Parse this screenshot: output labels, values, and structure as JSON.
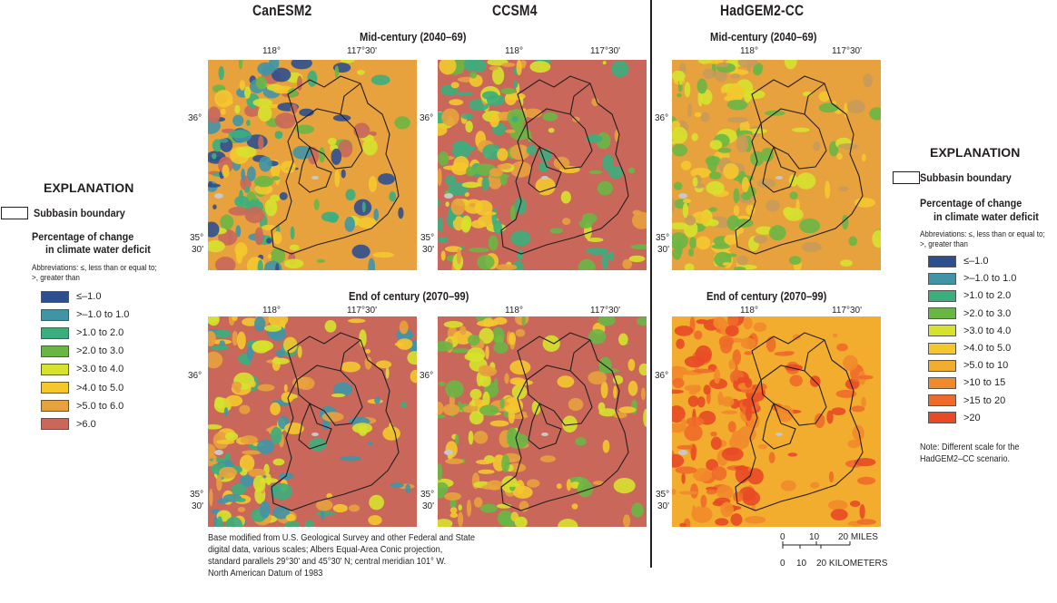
{
  "headers": {
    "canesm2": "CanESM2",
    "ccsm4": "CCSM4",
    "hadgem": "HadGEM2-CC"
  },
  "periods": {
    "mid": "Mid-century  (2040–69)",
    "end": "End of century (2070–99)"
  },
  "ticks": {
    "lon_left": "118°",
    "lon_right": "117°30'",
    "lat_top": "36°",
    "lat_bottom_deg": "35°",
    "lat_bottom_min": "30'"
  },
  "legend_left": {
    "title": "EXPLANATION",
    "boundary_label": "Subbasin boundary",
    "subtitle_line1": "Percentage of change",
    "subtitle_line2": "in climate water deficit",
    "abbr_line1": "Abbreviations: ≤, less than or equal to;",
    "abbr_line2": ">, greater than",
    "items": [
      {
        "label": "≤–1.0",
        "color": "#2e4f8f"
      },
      {
        "label": ">–1.0 to 1.0",
        "color": "#3f95a6"
      },
      {
        "label": ">1.0 to 2.0",
        "color": "#3cae7d"
      },
      {
        "label": ">2.0 to 3.0",
        "color": "#6ab645"
      },
      {
        "label": ">3.0 to 4.0",
        "color": "#d6e22c"
      },
      {
        "label": ">4.0 to 5.0",
        "color": "#f4c82d"
      },
      {
        "label": ">5.0 to 6.0",
        "color": "#e8a23d"
      },
      {
        "label": ">6.0",
        "color": "#c9685a"
      }
    ]
  },
  "legend_right": {
    "title": "EXPLANATION",
    "boundary_label": "Subbasin boundary",
    "subtitle_line1": "Percentage of change",
    "subtitle_line2": "in climate water deficit",
    "abbr_line1": "Abbreviations: ≤, less than or equal to;",
    "abbr_line2": ">, greater than",
    "items": [
      {
        "label": "≤–1.0",
        "color": "#2e4f8f"
      },
      {
        "label": ">–1.0 to 1.0",
        "color": "#3f95a6"
      },
      {
        "label": ">1.0 to 2.0",
        "color": "#3cae7d"
      },
      {
        "label": ">2.0 to 3.0",
        "color": "#6ab645"
      },
      {
        "label": ">3.0 to 4.0",
        "color": "#d6e22c"
      },
      {
        "label": ">4.0 to 5.0",
        "color": "#f4c82d"
      },
      {
        "label": ">5.0 to 10",
        "color": "#f2ac2e"
      },
      {
        "label": ">10 to 15",
        "color": "#f18a2a"
      },
      {
        "label": ">15 to 20",
        "color": "#ee6a2a"
      },
      {
        "label": ">20",
        "color": "#e84a26"
      }
    ],
    "note_line1": "Note: Different scale for the",
    "note_line2": "HadGEM2–CC scenario."
  },
  "credit": {
    "line1": "Base modified from U.S. Geological Survey and other Federal and State",
    "line2": "digital data, various scales; Albers Equal-Area Conic projection,",
    "line3": "standard parallels 29°30' and 45°30' N; central meridian 101° W.",
    "line4": "North American Datum of 1983"
  },
  "scalebar": {
    "miles_labels": [
      "0",
      "10",
      "20 MILES"
    ],
    "km_labels": [
      "0",
      "10",
      "20 KILOMETERS"
    ]
  },
  "maps": {
    "canesm2_mid": {
      "base": "#e8a23d",
      "patches": [
        "#d6e22c",
        "#6ab645",
        "#3cae7d",
        "#3f95a6",
        "#c9685a",
        "#f4c82d",
        "#2e4f8f"
      ]
    },
    "ccsm4_mid": {
      "base": "#c9685a",
      "patches": [
        "#d6e22c",
        "#6ab645",
        "#e8a23d",
        "#3cae7d",
        "#f4c82d"
      ]
    },
    "hadgem_mid": {
      "base": "#e8a23d",
      "patches": [
        "#f4c82d",
        "#d6e22c",
        "#6ab645",
        "#c79b5a"
      ]
    },
    "canesm2_end": {
      "base": "#c9685a",
      "patches": [
        "#e8a23d",
        "#f4c82d",
        "#3f95a6",
        "#3cae7d",
        "#d6e22c"
      ]
    },
    "ccsm4_end": {
      "base": "#c9685a",
      "patches": [
        "#e8a23d",
        "#d6e22c",
        "#f4c82d",
        "#6ab645"
      ]
    },
    "hadgem_end": {
      "base": "#f2ac2e",
      "patches": [
        "#ee6a2a",
        "#f18a2a",
        "#e84a26"
      ]
    }
  }
}
